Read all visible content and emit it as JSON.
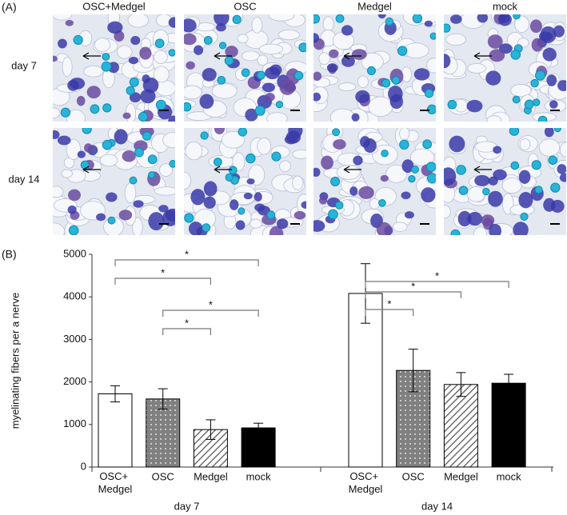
{
  "panel_a": {
    "label": "(A)",
    "columns": [
      "OSC+Medgel",
      "OSC",
      "Medgel",
      "mock"
    ],
    "rows": [
      "day 7",
      "day 14"
    ]
  },
  "chart_data": {
    "type": "bar",
    "panel_label": "(B)",
    "y_label": "myelinating fibers per a nerve",
    "groups": [
      "day 7",
      "day 14"
    ],
    "series": [
      {
        "name": "OSC+ Medgel",
        "color": "#ffffff",
        "pattern": "none",
        "values": [
          1720,
          4080
        ],
        "errors": [
          190,
          700
        ]
      },
      {
        "name": "OSC",
        "color": "#808080",
        "pattern": "dots",
        "values": [
          1600,
          2270
        ],
        "errors": [
          240,
          500
        ]
      },
      {
        "name": "Medgel",
        "color": "#ffffff",
        "pattern": "hatch",
        "values": [
          880,
          1940
        ],
        "errors": [
          230,
          280
        ]
      },
      {
        "name": "mock",
        "color": "#000000",
        "pattern": "solid",
        "values": [
          920,
          1970
        ],
        "errors": [
          110,
          210
        ]
      }
    ],
    "significance": [
      {
        "group": 0,
        "from": 0,
        "to": 3,
        "label": "*"
      },
      {
        "group": 0,
        "from": 0,
        "to": 2,
        "label": "*"
      },
      {
        "group": 0,
        "from": 1,
        "to": 3,
        "label": "*"
      },
      {
        "group": 0,
        "from": 1,
        "to": 2,
        "label": "*"
      },
      {
        "group": 1,
        "from": 0,
        "to": 3,
        "label": "*"
      },
      {
        "group": 1,
        "from": 0,
        "to": 2,
        "label": "*"
      },
      {
        "group": 1,
        "from": 0,
        "to": 1,
        "label": "*"
      }
    ],
    "ylim": [
      0,
      5000
    ],
    "yticks": [
      0,
      1000,
      2000,
      3000,
      4000,
      5000
    ]
  }
}
